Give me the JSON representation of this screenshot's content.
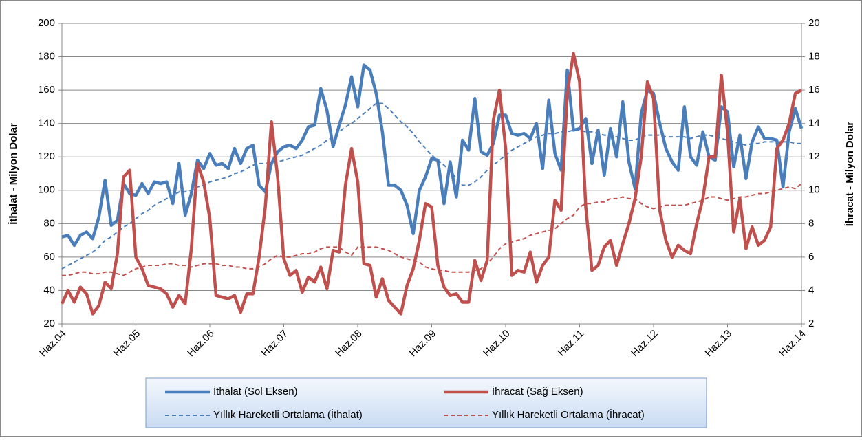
{
  "chart_data": {
    "type": "line",
    "categories": [
      "Haz.04",
      null,
      null,
      null,
      null,
      null,
      null,
      null,
      null,
      null,
      null,
      null,
      "Haz.05",
      null,
      null,
      null,
      null,
      null,
      null,
      null,
      null,
      null,
      null,
      null,
      "Haz.06",
      null,
      null,
      null,
      null,
      null,
      null,
      null,
      null,
      null,
      null,
      null,
      "Haz.07",
      null,
      null,
      null,
      null,
      null,
      null,
      null,
      null,
      null,
      null,
      null,
      "Haz.08",
      null,
      null,
      null,
      null,
      null,
      null,
      null,
      null,
      null,
      null,
      null,
      "Haz.09",
      null,
      null,
      null,
      null,
      null,
      null,
      null,
      null,
      null,
      null,
      null,
      "Haz.10",
      null,
      null,
      null,
      null,
      null,
      null,
      null,
      null,
      null,
      null,
      null,
      "Haz.11",
      null,
      null,
      null,
      null,
      null,
      null,
      null,
      null,
      null,
      null,
      null,
      "Haz.12",
      null,
      null,
      null,
      null,
      null,
      null,
      null,
      null,
      null,
      null,
      null,
      "Haz.13",
      null,
      null,
      null,
      null,
      null,
      null,
      null,
      null,
      null,
      null,
      null,
      "Haz.14"
    ],
    "ylabel": "İthalat - Milyon Dolar",
    "y2label": "İhracat - Milyon Dolar",
    "ylim": [
      20,
      200
    ],
    "yticks": [
      20,
      40,
      60,
      80,
      100,
      120,
      140,
      160,
      180,
      200
    ],
    "y2lim": [
      2,
      20
    ],
    "y2ticks": [
      2,
      4,
      6,
      8,
      10,
      12,
      14,
      16,
      18,
      20
    ],
    "grid": true,
    "legend": "bottom",
    "series": [
      {
        "name": "İthalat (Sol Eksen)",
        "color": "#4a7ebb",
        "dash": false,
        "values": [
          72,
          73,
          67,
          73,
          75,
          71,
          84,
          106,
          79,
          82,
          104,
          98,
          97,
          104,
          98,
          105,
          104,
          105,
          92,
          116,
          85,
          98,
          118,
          113,
          122,
          115,
          116,
          113,
          125,
          116,
          125,
          127,
          103,
          99,
          116,
          123,
          126,
          127,
          125,
          130,
          138,
          139,
          161,
          148,
          126,
          139,
          151,
          168,
          150,
          175,
          172,
          158,
          135,
          103,
          103,
          100,
          91,
          74,
          100,
          108,
          119,
          118,
          92,
          117,
          96,
          130,
          124,
          155,
          123,
          121,
          128,
          145,
          145,
          134,
          133,
          134,
          131,
          140,
          113,
          154,
          122,
          112,
          172,
          136,
          137,
          143,
          116,
          136,
          109,
          137,
          120,
          153,
          117,
          101,
          146,
          160,
          158,
          140,
          125,
          117,
          112,
          150,
          120,
          115,
          135,
          120,
          118,
          150,
          147,
          114,
          133,
          107,
          129,
          138,
          131,
          131,
          130,
          102,
          135,
          149,
          137
        ]
      },
      {
        "name": "İhracat (Sağ Eksen)",
        "color": "#c0504d",
        "dash": false,
        "axis": "y2",
        "values": [
          3.2,
          4.0,
          3.3,
          4.2,
          3.8,
          2.6,
          3.1,
          4.5,
          4.1,
          6.2,
          10.8,
          11.2,
          6.0,
          5.3,
          4.3,
          4.2,
          4.1,
          3.8,
          3.0,
          3.7,
          3.2,
          6.5,
          11.6,
          10.5,
          8.3,
          3.7,
          3.6,
          3.5,
          3.7,
          2.7,
          3.8,
          3.8,
          6.0,
          9.0,
          14.1,
          10.8,
          5.9,
          4.9,
          5.2,
          3.9,
          4.8,
          4.5,
          5.4,
          4.1,
          6.4,
          6.3,
          10.3,
          12.5,
          10.5,
          5.6,
          5.5,
          3.6,
          4.7,
          3.4,
          3.0,
          2.6,
          4.3,
          5.3,
          7.0,
          9.2,
          9.0,
          5.5,
          4.2,
          3.7,
          3.8,
          3.3,
          3.3,
          5.8,
          4.6,
          5.8,
          14.2,
          16.0,
          12.5,
          4.9,
          5.2,
          5.1,
          6.3,
          4.5,
          5.5,
          6.0,
          9.4,
          8.8,
          15.8,
          18.2,
          16.5,
          9.0,
          5.2,
          5.5,
          6.6,
          7.0,
          5.5,
          6.8,
          8.0,
          9.5,
          12.0,
          16.5,
          15.5,
          8.8,
          7.0,
          6.0,
          6.7,
          6.4,
          6.2,
          8.0,
          9.5,
          12.0,
          12.0,
          16.9,
          13.5,
          7.5,
          9.5,
          6.5,
          7.8,
          6.7,
          7.0,
          7.8,
          12.5,
          13.0,
          14.0,
          15.8,
          16.0
        ]
      },
      {
        "name": "Yıllık Hareketli Ortalama (İthalat)",
        "color": "#4a7ebb",
        "dash": true,
        "values": [
          53,
          55,
          57,
          59,
          61,
          63,
          66,
          70,
          72,
          75,
          78,
          80,
          83,
          86,
          88,
          91,
          93,
          95,
          97,
          99,
          99,
          100,
          102,
          103,
          105,
          106,
          107,
          108,
          110,
          111,
          113,
          115,
          116,
          116,
          117,
          117,
          118,
          119,
          120,
          121,
          123,
          125,
          127,
          130,
          132,
          135,
          138,
          140,
          143,
          146,
          149,
          152,
          152,
          149,
          145,
          141,
          138,
          134,
          129,
          125,
          121,
          118,
          115,
          112,
          107,
          103,
          103,
          105,
          108,
          112,
          115,
          118,
          121,
          124,
          126,
          128,
          130,
          132,
          133,
          134,
          134,
          135,
          135,
          136,
          136,
          135,
          135,
          134,
          133,
          133,
          132,
          131,
          130,
          130,
          132,
          133,
          133,
          133,
          132,
          132,
          132,
          132,
          131,
          132,
          133,
          133,
          132,
          131,
          130,
          129,
          128,
          127,
          128,
          128,
          129,
          129,
          129,
          129,
          129,
          128,
          128
        ]
      },
      {
        "name": "Yıllık Hareketli Ortalama (İhracat)",
        "color": "#c0504d",
        "dash": true,
        "axis": "y2",
        "values": [
          4.9,
          4.9,
          5.0,
          5.1,
          5.1,
          5.0,
          5.0,
          5.1,
          5.1,
          5.0,
          4.9,
          5.1,
          5.3,
          5.4,
          5.5,
          5.5,
          5.5,
          5.6,
          5.6,
          5.5,
          5.5,
          5.4,
          5.5,
          5.6,
          5.6,
          5.6,
          5.5,
          5.5,
          5.4,
          5.4,
          5.3,
          5.3,
          5.4,
          5.6,
          5.9,
          6.1,
          6.0,
          6.0,
          6.1,
          6.2,
          6.2,
          6.3,
          6.5,
          6.6,
          6.6,
          6.6,
          6.3,
          6.1,
          6.6,
          6.6,
          6.6,
          6.6,
          6.5,
          6.4,
          6.2,
          6.0,
          5.9,
          5.8,
          5.7,
          5.4,
          5.3,
          5.2,
          5.2,
          5.1,
          5.1,
          5.1,
          5.1,
          5.2,
          5.3,
          5.6,
          6.0,
          6.5,
          6.8,
          6.9,
          7.0,
          7.1,
          7.3,
          7.4,
          7.5,
          7.6,
          7.7,
          8.0,
          8.3,
          8.5,
          9.0,
          9.2,
          9.2,
          9.3,
          9.3,
          9.5,
          9.5,
          9.6,
          9.5,
          9.5,
          9.2,
          9.0,
          8.9,
          9.0,
          9.1,
          9.1,
          9.1,
          9.1,
          9.2,
          9.3,
          9.4,
          9.6,
          9.6,
          9.5,
          9.4,
          9.5,
          9.6,
          9.6,
          9.7,
          9.8,
          9.8,
          9.9,
          10.0,
          10.1,
          10.2,
          10.1,
          10.4
        ]
      }
    ]
  }
}
